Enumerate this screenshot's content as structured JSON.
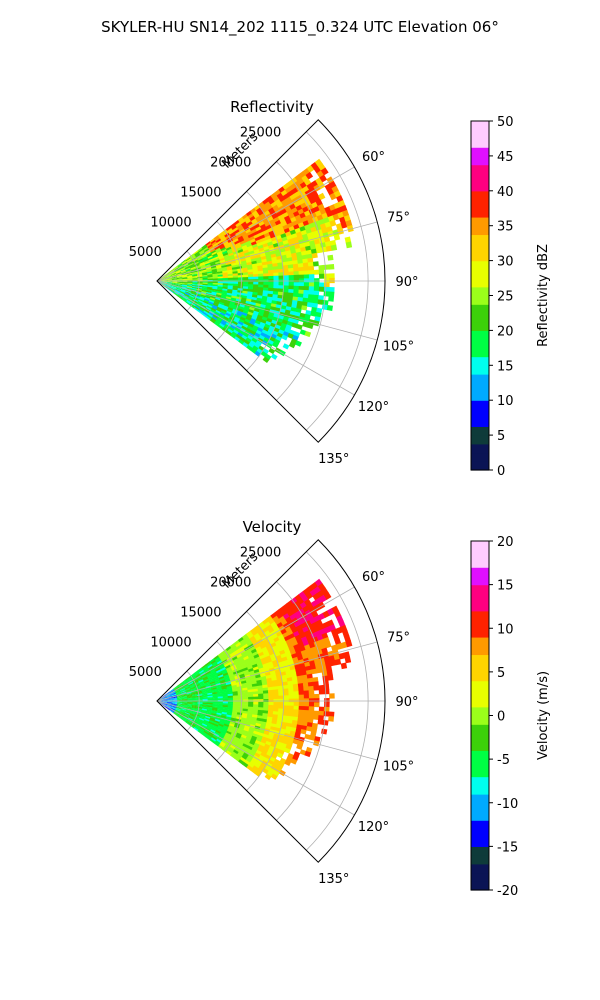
{
  "figure": {
    "title": "SKYLER-HU  SN14_202  1115_0.324 UTC Elevation 06°"
  },
  "chart_data": [
    {
      "type": "heatmap",
      "panel": "reflectivity",
      "title": "Reflectivity",
      "projection": "polar-sector",
      "theta_range_deg": [
        45,
        135
      ],
      "r_range_m": [
        0,
        27000
      ],
      "r_axis_label": "Meters",
      "r_ticks": [
        "5000",
        "10000",
        "15000",
        "20000",
        "25000"
      ],
      "theta_ticks": [
        "60°",
        "75°",
        "90°",
        "105°",
        "120°",
        "135°"
      ],
      "grid": true,
      "colorbar": {
        "label": "Reflectivity dBZ",
        "range": [
          0,
          50
        ],
        "ticks": [
          "0",
          "5",
          "10",
          "15",
          "20",
          "25",
          "30",
          "35",
          "40",
          "45",
          "50"
        ],
        "palette": [
          "#0b1455",
          "#0e3b3a",
          "#0000ff",
          "#00aaff",
          "#00ffee",
          "#00ff44",
          "#3cd10a",
          "#9bff1a",
          "#e8ff00",
          "#ffd400",
          "#ff9a00",
          "#ff2200",
          "#ff0080",
          "#e010ff",
          "#ffccff"
        ]
      },
      "data_summary": [
        {
          "theta_deg": [
            52,
            70
          ],
          "r_m": [
            12000,
            24000
          ],
          "dbz": 35
        },
        {
          "theta_deg": [
            70,
            88
          ],
          "r_m": [
            8000,
            22000
          ],
          "dbz": 28
        },
        {
          "theta_deg": [
            88,
            110
          ],
          "r_m": [
            4000,
            20000
          ],
          "dbz": 19
        },
        {
          "theta_deg": [
            110,
            125
          ],
          "r_m": [
            6000,
            19000
          ],
          "dbz": 17
        },
        {
          "theta_deg": [
            60,
            90
          ],
          "r_m": [
            0,
            6000
          ],
          "dbz": 24
        }
      ]
    },
    {
      "type": "heatmap",
      "panel": "velocity",
      "title": "Velocity",
      "projection": "polar-sector",
      "theta_range_deg": [
        45,
        135
      ],
      "r_range_m": [
        0,
        27000
      ],
      "r_axis_label": "Meters",
      "r_ticks": [
        "5000",
        "10000",
        "15000",
        "20000",
        "25000"
      ],
      "theta_ticks": [
        "60°",
        "75°",
        "90°",
        "105°",
        "120°",
        "135°"
      ],
      "grid": true,
      "colorbar": {
        "label": "Velocity (m/s)",
        "range": [
          -20,
          20
        ],
        "ticks": [
          "-20",
          "-15",
          "-10",
          "-5",
          "0",
          "5",
          "10",
          "15",
          "20"
        ],
        "palette": [
          "#0b1455",
          "#0e3b3a",
          "#0000ff",
          "#00aaff",
          "#00ffee",
          "#00ff44",
          "#3cd10a",
          "#9bff1a",
          "#e8ff00",
          "#ffd400",
          "#ff9a00",
          "#ff2200",
          "#ff0080",
          "#e010ff",
          "#ffccff"
        ]
      },
      "data_summary": [
        {
          "r_m": [
            0,
            2500
          ],
          "velocity_ms": -11
        },
        {
          "r_m": [
            2500,
            9000
          ],
          "velocity_ms": -5
        },
        {
          "r_m": [
            9000,
            13000
          ],
          "velocity_ms": 0
        },
        {
          "r_m": [
            13000,
            17000
          ],
          "velocity_ms": 4
        },
        {
          "r_m": [
            17000,
            24000
          ],
          "velocity_ms": 9
        }
      ]
    }
  ]
}
